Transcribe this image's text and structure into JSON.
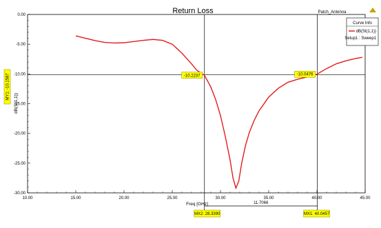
{
  "window": {
    "project_name": "Patch_Antenna"
  },
  "legend": {
    "title": "Curve Info",
    "entry_label": "dB(St(1,1))",
    "entry_sublabel": "Setup1 : Sweep1",
    "line_color": "#e31a1c"
  },
  "chart_data": {
    "type": "line",
    "title": "Return Loss",
    "xlabel": "Freq [GHz]",
    "ylabel": "dB(S(1,1))",
    "xlim": [
      10,
      45
    ],
    "ylim": [
      -30,
      0
    ],
    "xticks": [
      "10.00",
      "15.00",
      "20.00",
      "25.00",
      "30.00",
      "35.00",
      "40.00",
      "45.00"
    ],
    "yticks": [
      "0.00",
      "-5.00",
      "-10.00",
      "-15.00",
      "-20.00",
      "-25.00",
      "-30.00"
    ],
    "grid": false,
    "legend_position": "top-right",
    "series": [
      {
        "name": "dB(St(1,1))",
        "color": "#e31a1c",
        "x": [
          15.0,
          16.0,
          17.0,
          18.0,
          19.0,
          20.0,
          21.0,
          22.0,
          23.0,
          24.0,
          25.0,
          26.0,
          27.0,
          27.5,
          28.0,
          28.34,
          29.0,
          29.5,
          30.0,
          30.5,
          31.0,
          31.3,
          31.6,
          31.9,
          32.2,
          32.6,
          33.0,
          33.5,
          34.0,
          35.0,
          36.0,
          37.0,
          38.0,
          39.0,
          40.0,
          41.0,
          42.0,
          43.0,
          44.0,
          44.7
        ],
        "y": [
          -3.6,
          -4.0,
          -4.4,
          -4.7,
          -4.8,
          -4.75,
          -4.55,
          -4.35,
          -4.2,
          -4.35,
          -5.0,
          -6.5,
          -8.3,
          -9.3,
          -9.9,
          -10.22,
          -12.2,
          -14.3,
          -17.0,
          -20.5,
          -24.5,
          -27.5,
          -29.2,
          -28.0,
          -25.0,
          -22.0,
          -19.8,
          -17.8,
          -16.2,
          -13.9,
          -12.4,
          -11.4,
          -10.9,
          -10.5,
          -10.05,
          -9.1,
          -8.3,
          -7.8,
          -7.4,
          -7.2
        ]
      }
    ],
    "horizontal_marker": {
      "label": "MY1:",
      "value_text": "-10.1587",
      "y": -10.1587
    },
    "markers": [
      {
        "name": "MX2:",
        "x": 28.339,
        "x_text": "28.3390",
        "y_text": "-10.2237"
      },
      {
        "name": "MX1:",
        "x": 40.0457,
        "x_text": "40.0457",
        "y_text": "-10.0476"
      }
    ],
    "marker_delta_text": "11.7066"
  }
}
